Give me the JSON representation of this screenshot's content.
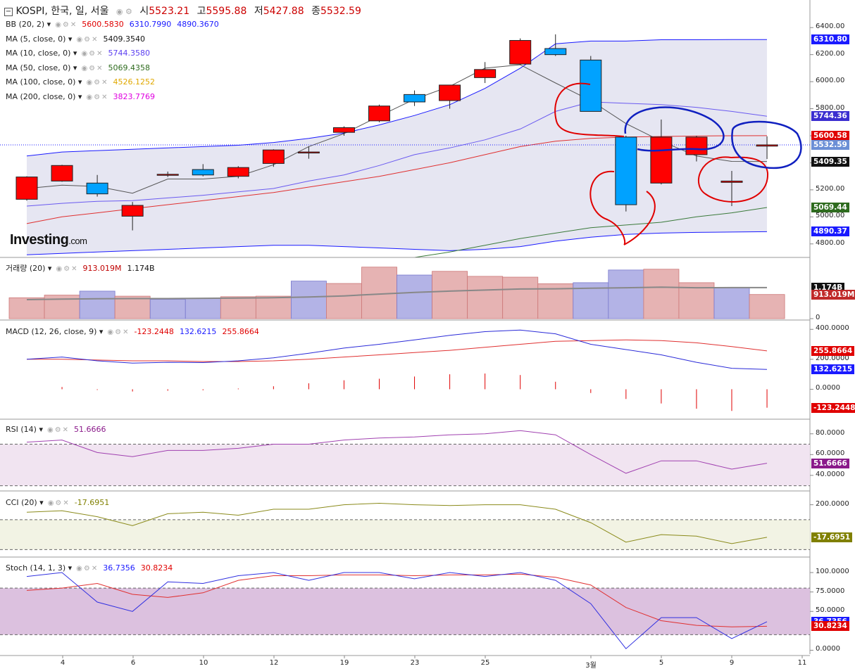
{
  "header": {
    "symbol": "KOSPI, 한국, 일, 서울",
    "open_label": "시",
    "open": "5523.21",
    "high_label": "고",
    "high": "5595.88",
    "low_label": "저",
    "low": "5427.88",
    "close_label": "종",
    "close": "5532.59"
  },
  "main_legends": [
    {
      "name": "BB (20, 2)",
      "values": [
        {
          "t": "5600.5830",
          "c": "#e00000"
        },
        {
          "t": "6310.7990",
          "c": "#1a1aff"
        },
        {
          "t": "4890.3670",
          "c": "#1a1aff"
        }
      ]
    },
    {
      "name": "MA (5, close, 0)",
      "values": [
        {
          "t": "5409.3540",
          "c": "#111111"
        }
      ]
    },
    {
      "name": "MA (10, close, 0)",
      "values": [
        {
          "t": "5744.3580",
          "c": "#5b3ef0"
        }
      ]
    },
    {
      "name": "MA (50, close, 0)",
      "values": [
        {
          "t": "5069.4358",
          "c": "#2e6b1e"
        }
      ]
    },
    {
      "name": "MA (100, close, 0)",
      "values": [
        {
          "t": "4526.1252",
          "c": "#e0a800"
        }
      ]
    },
    {
      "name": "MA (200, close, 0)",
      "values": [
        {
          "t": "3823.7769",
          "c": "#e000e0"
        }
      ]
    }
  ],
  "logo": {
    "brand": "Investing",
    "suffix": ".com"
  },
  "price_axis": {
    "ticks": [
      "6400.00",
      "6200.00",
      "6000.00",
      "5800.00",
      "5600.00",
      "5400.00",
      "5200.00",
      "5000.00",
      "4800.00"
    ]
  },
  "price_tags": [
    {
      "t": "6310.80",
      "bg": "#1a1aff"
    },
    {
      "t": "5744.36",
      "bg": "#3b2fd0"
    },
    {
      "t": "5600.58",
      "bg": "#e00000"
    },
    {
      "t": "5532.59",
      "bg": "#6b8fd6"
    },
    {
      "t": "5409.35",
      "bg": "#111111"
    },
    {
      "t": "5069.44",
      "bg": "#2e6b1e"
    },
    {
      "t": "4890.37",
      "bg": "#1a1aff"
    }
  ],
  "volume": {
    "legend": {
      "name": "거래량 (20)",
      "values": [
        {
          "t": "913.019M",
          "c": "#c00000"
        },
        {
          "t": "1.174B",
          "c": "#111111"
        }
      ]
    },
    "ticks": [
      "0"
    ],
    "tags": [
      {
        "t": "1.174B",
        "bg": "#111111"
      },
      {
        "t": "913.019M",
        "bg": "#c02a2a"
      }
    ]
  },
  "macd": {
    "legend": {
      "name": "MACD (12, 26, close, 9)",
      "values": [
        {
          "t": "-123.2448",
          "c": "#e00000"
        },
        {
          "t": "132.6215",
          "c": "#1a1aff"
        },
        {
          "t": "255.8664",
          "c": "#e00000"
        }
      ]
    },
    "ticks": [
      "400.0000",
      "200.0000",
      "0.0000"
    ],
    "tags": [
      {
        "t": "255.8664",
        "bg": "#e00000"
      },
      {
        "t": "132.6215",
        "bg": "#1a1aff"
      },
      {
        "t": "-123.2448",
        "bg": "#e00000"
      }
    ]
  },
  "rsi": {
    "legend": {
      "name": "RSI (14)",
      "values": [
        {
          "t": "51.6666",
          "c": "#8a1a8a"
        }
      ]
    },
    "ticks": [
      "80.0000",
      "60.0000",
      "40.0000"
    ],
    "tags": [
      {
        "t": "51.6666",
        "bg": "#8a1a8a"
      }
    ]
  },
  "cci": {
    "legend": {
      "name": "CCI (20)",
      "values": [
        {
          "t": "-17.6951",
          "c": "#808000"
        }
      ]
    },
    "ticks": [
      "200.0000"
    ],
    "tags": [
      {
        "t": "-17.6951",
        "bg": "#808000"
      }
    ]
  },
  "stoch": {
    "legend": {
      "name": "Stoch (14, 1, 3)",
      "values": [
        {
          "t": "36.7356",
          "c": "#1a1aff"
        },
        {
          "t": "30.8234",
          "c": "#e00000"
        }
      ]
    },
    "ticks": [
      "100.0000",
      "75.0000",
      "50.0000",
      "0.0000"
    ],
    "tags": [
      {
        "t": "36.7356",
        "bg": "#1a1aff"
      },
      {
        "t": "30.8234",
        "bg": "#e00000"
      }
    ]
  },
  "x_axis_labels": [
    "4",
    "6",
    "10",
    "12",
    "19",
    "23",
    "25",
    "3월",
    "5",
    "9",
    "11"
  ],
  "colors": {
    "up": "#ff0000",
    "down": "#00a2ff",
    "bb_fill": "#e6e6f2",
    "bb_line": "#1a1aff",
    "bb_mid": "#e03030",
    "ma5": "#555555",
    "ma10": "#6a5af0",
    "ma50": "#3a7a3a"
  },
  "chart_data": {
    "type": "candlestick",
    "ylim": [
      4700,
      6500
    ],
    "candles": [
      {
        "o": 5130,
        "h": 5300,
        "l": 5120,
        "c": 5295
      },
      {
        "o": 5265,
        "h": 5385,
        "l": 5260,
        "c": 5380
      },
      {
        "o": 5250,
        "h": 5310,
        "l": 5150,
        "c": 5170
      },
      {
        "o": 5005,
        "h": 5110,
        "l": 4900,
        "c": 5085
      },
      {
        "o": 5310,
        "h": 5335,
        "l": 5295,
        "c": 5315
      },
      {
        "o": 5350,
        "h": 5390,
        "l": 5300,
        "c": 5310
      },
      {
        "o": 5300,
        "h": 5375,
        "l": 5285,
        "c": 5365
      },
      {
        "o": 5395,
        "h": 5500,
        "l": 5370,
        "c": 5495
      },
      {
        "o": 5475,
        "h": 5520,
        "l": 5430,
        "c": 5480
      },
      {
        "o": 5625,
        "h": 5670,
        "l": 5600,
        "c": 5660
      },
      {
        "o": 5710,
        "h": 5830,
        "l": 5700,
        "c": 5820
      },
      {
        "o": 5905,
        "h": 5935,
        "l": 5820,
        "c": 5850
      },
      {
        "o": 5860,
        "h": 5970,
        "l": 5800,
        "c": 5975
      },
      {
        "o": 6030,
        "h": 6145,
        "l": 5990,
        "c": 6090
      },
      {
        "o": 6130,
        "h": 6320,
        "l": 6125,
        "c": 6305
      },
      {
        "o": 6245,
        "h": 6350,
        "l": 6190,
        "c": 6200
      },
      {
        "o": 6160,
        "h": 6190,
        "l": 5780,
        "c": 5780
      },
      {
        "o": 5590,
        "h": 5600,
        "l": 5040,
        "c": 5090
      },
      {
        "o": 5250,
        "h": 5720,
        "l": 5240,
        "c": 5590
      },
      {
        "o": 5460,
        "h": 5600,
        "l": 5410,
        "c": 5590
      },
      {
        "o": 5255,
        "h": 5340,
        "l": 5080,
        "c": 5265
      },
      {
        "o": 5523.21,
        "h": 5595.88,
        "l": 5427.88,
        "c": 5532.59
      }
    ],
    "bb_upper": [
      5450,
      5480,
      5490,
      5500,
      5510,
      5520,
      5530,
      5550,
      5580,
      5620,
      5680,
      5750,
      5830,
      5950,
      6100,
      6280,
      6300,
      6300,
      6310,
      6310,
      6311,
      6311
    ],
    "bb_mid": [
      4950,
      5000,
      5030,
      5060,
      5090,
      5120,
      5150,
      5180,
      5220,
      5260,
      5300,
      5350,
      5400,
      5460,
      5520,
      5560,
      5580,
      5590,
      5595,
      5598,
      5600,
      5600.58
    ],
    "bb_lower": [
      4720,
      4730,
      4740,
      4750,
      4760,
      4770,
      4780,
      4790,
      4790,
      4780,
      4770,
      4760,
      4750,
      4760,
      4780,
      4820,
      4850,
      4870,
      4880,
      4885,
      4888,
      4890.37
    ],
    "ma5": [
      5210,
      5235,
      5225,
      5175,
      5280,
      5280,
      5300,
      5385,
      5520,
      5615,
      5745,
      5870,
      5965,
      6100,
      6125,
      5990,
      5860,
      5690,
      5560,
      5450,
      5410,
      5409.35
    ],
    "ma10": [
      5080,
      5100,
      5115,
      5120,
      5140,
      5160,
      5185,
      5210,
      5265,
      5310,
      5380,
      5460,
      5510,
      5570,
      5650,
      5780,
      5850,
      5840,
      5830,
      5810,
      5780,
      5744.36
    ],
    "ma50": [
      null,
      null,
      null,
      null,
      null,
      null,
      null,
      null,
      null,
      null,
      null,
      4700,
      4740,
      4790,
      4840,
      4880,
      4920,
      4940,
      4960,
      5000,
      5030,
      5069.44
    ],
    "volume_values": [
      0.79,
      0.89,
      1.04,
      0.85,
      0.73,
      0.77,
      0.83,
      0.85,
      1.42,
      1.33,
      1.95,
      1.65,
      1.79,
      1.6,
      1.57,
      1.32,
      1.36,
      1.84,
      1.87,
      1.36,
      1.17,
      0.913
    ],
    "volume_up": [
      true,
      true,
      false,
      true,
      false,
      false,
      true,
      true,
      false,
      true,
      true,
      false,
      true,
      true,
      true,
      true,
      false,
      false,
      true,
      true,
      false,
      true
    ],
    "volume_ma": [
      0.72,
      0.74,
      0.75,
      0.76,
      0.76,
      0.77,
      0.78,
      0.79,
      0.82,
      0.86,
      0.93,
      0.99,
      1.04,
      1.08,
      1.12,
      1.13,
      1.15,
      1.17,
      1.19,
      1.17,
      1.174,
      1.174
    ],
    "macd_line": [
      200,
      215,
      190,
      175,
      180,
      178,
      190,
      210,
      240,
      275,
      300,
      330,
      360,
      385,
      395,
      370,
      300,
      265,
      230,
      180,
      140,
      132.6215
    ],
    "macd_signal": [
      200,
      200,
      195,
      190,
      190,
      185,
      185,
      190,
      200,
      215,
      230,
      245,
      260,
      280,
      300,
      320,
      325,
      330,
      325,
      310,
      285,
      255.8664
    ],
    "macd_hist": [
      0,
      15,
      -5,
      -15,
      -10,
      -7,
      5,
      20,
      40,
      60,
      70,
      85,
      100,
      105,
      95,
      50,
      -25,
      -65,
      -95,
      -130,
      -145,
      -123.2448
    ],
    "macd_ylim": [
      -200,
      420
    ],
    "rsi": [
      72,
      74,
      62,
      58,
      64,
      64,
      66,
      70,
      70,
      74,
      76,
      77,
      79,
      80,
      83,
      79,
      60,
      42,
      54,
      54,
      46,
      51.6666
    ],
    "rsi_bands": [
      70,
      30
    ],
    "rsi_ylim": [
      25,
      90
    ],
    "cci": [
      150,
      160,
      120,
      60,
      140,
      150,
      130,
      170,
      170,
      200,
      210,
      200,
      195,
      200,
      200,
      170,
      80,
      -50,
      0,
      -10,
      -60,
      -17.6951
    ],
    "cci_bands": [
      100,
      -100
    ],
    "cci_ylim": [
      -150,
      250
    ],
    "stoch_k": [
      95,
      100,
      62,
      50,
      88,
      86,
      96,
      100,
      90,
      100,
      100,
      92,
      100,
      95,
      100,
      90,
      60,
      2,
      42,
      42,
      15,
      36.7356
    ],
    "stoch_d": [
      77,
      80,
      86,
      72,
      68,
      74,
      90,
      96,
      96,
      97,
      97,
      96,
      97,
      97,
      98,
      94,
      84,
      55,
      38,
      32,
      30,
      30.8234
    ],
    "stoch_bands": [
      80,
      20
    ],
    "stoch_ylim": [
      -5,
      110
    ]
  }
}
